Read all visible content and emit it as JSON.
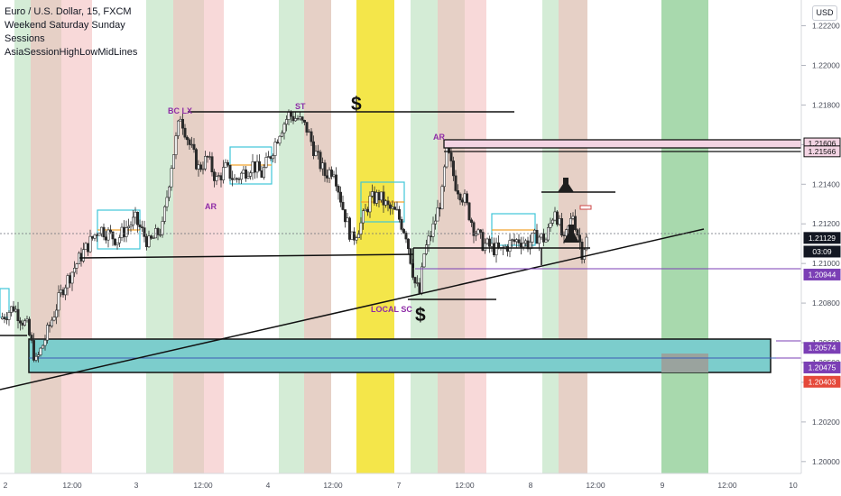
{
  "legend": {
    "symbol": "Euro / U.S. Dollar, 15, FXCM",
    "indicators": [
      "Weekend Saturday Sunday",
      "Sessions",
      "AsiaSessionHighLowMidLines"
    ]
  },
  "currency_button": "USD",
  "colors": {
    "background": "#ffffff",
    "candle": "#2b2b2b",
    "green_session": "#d4ecd6",
    "red_session": "#f8d9d9",
    "brown_session": "#e6d0c6",
    "yellow_highlight": "#f4e64a",
    "future_green": "#a8d9ad",
    "zone_fill": "#7ccdcc",
    "asia_box": "#3fc6d8",
    "asia_mid": "#f2a32e",
    "purple_line": "#7b3fb5",
    "label_purple": "#8e2ca6",
    "price_current": "#131722",
    "price_red": "#e5493a",
    "axis_text": "#4a4e5a"
  },
  "chart_data": {
    "type": "candlestick",
    "symbol": "EURUSD",
    "timeframe": "15",
    "ylim": [
      1.1994,
      1.2233
    ],
    "y_ticks": [
      "1.22200",
      "1.22000",
      "1.21800",
      "1.21600",
      "1.21400",
      "1.21200",
      "1.21000",
      "1.20800",
      "1.20600",
      "1.20500",
      "1.20400",
      "1.20200",
      "1.20000"
    ],
    "x_ticks": [
      "2",
      "12:00",
      "3",
      "12:00",
      "4",
      "12:00",
      "7",
      "12:00",
      "8",
      "12:00",
      "9",
      "12:00",
      "10"
    ],
    "price_trend": [
      [
        0,
        1.2072
      ],
      [
        3,
        1.2078
      ],
      [
        6,
        1.2068
      ],
      [
        8,
        1.205
      ],
      [
        10,
        1.2062
      ],
      [
        14,
        1.2088
      ],
      [
        18,
        1.2104
      ],
      [
        22,
        1.2118
      ],
      [
        24,
        1.2115
      ],
      [
        26,
        1.2112
      ],
      [
        28,
        1.2118
      ],
      [
        30,
        1.2122
      ],
      [
        33,
        1.211
      ],
      [
        36,
        1.2118
      ],
      [
        38,
        1.215
      ],
      [
        40,
        1.2175
      ],
      [
        42,
        1.216
      ],
      [
        44,
        1.2148
      ],
      [
        46,
        1.2153
      ],
      [
        48,
        1.2142
      ],
      [
        50,
        1.2148
      ],
      [
        52,
        1.2142
      ],
      [
        54,
        1.2146
      ],
      [
        56,
        1.215
      ],
      [
        58,
        1.2145
      ],
      [
        60,
        1.2155
      ],
      [
        62,
        1.2167
      ],
      [
        64,
        1.2175
      ],
      [
        66,
        1.2173
      ],
      [
        68,
        1.2168
      ],
      [
        70,
        1.2155
      ],
      [
        72,
        1.2145
      ],
      [
        74,
        1.2148
      ],
      [
        76,
        1.2128
      ],
      [
        78,
        1.2112
      ],
      [
        80,
        1.212
      ],
      [
        82,
        1.2132
      ],
      [
        84,
        1.2134
      ],
      [
        86,
        1.2128
      ],
      [
        88,
        1.2125
      ],
      [
        90,
        1.2115
      ],
      [
        92,
        1.209
      ],
      [
        93,
        1.2085
      ],
      [
        94,
        1.2105
      ],
      [
        96,
        1.2118
      ],
      [
        98,
        1.2135
      ],
      [
        99,
        1.2158
      ],
      [
        101,
        1.214
      ],
      [
        103,
        1.2132
      ],
      [
        105,
        1.2118
      ],
      [
        107,
        1.211
      ],
      [
        109,
        1.2108
      ],
      [
        111,
        1.2106
      ],
      [
        113,
        1.211
      ],
      [
        115,
        1.2112
      ],
      [
        117,
        1.211
      ],
      [
        119,
        1.2114
      ],
      [
        121,
        1.2112
      ],
      [
        123,
        1.2128
      ],
      [
        125,
        1.211
      ],
      [
        127,
        1.2125
      ],
      [
        129,
        1.2106
      ],
      [
        130,
        1.2112
      ]
    ],
    "price_labels": [
      {
        "text": "1.21606",
        "price": 1.21606,
        "style": "pink"
      },
      {
        "text": "1.21566",
        "price": 1.21566,
        "style": "pink"
      },
      {
        "text": "1.21129",
        "price": 1.21129,
        "style": "dark"
      },
      {
        "text": "03:09",
        "price": 1.2106,
        "style": "dark"
      },
      {
        "text": "1.20944",
        "price": 1.20944,
        "style": "purple"
      },
      {
        "text": "1.20574",
        "price": 1.20574,
        "style": "purple"
      },
      {
        "text": "1.20475",
        "price": 1.20475,
        "style": "purple"
      },
      {
        "text": "1.20403",
        "price": 1.20403,
        "style": "red"
      }
    ],
    "levels": [
      {
        "price": 1.21606,
        "color": "#7b3fb5"
      },
      {
        "price": 1.21566,
        "color": "#7b3fb5"
      },
      {
        "price": 1.20944,
        "color": "#7b3fb5"
      },
      {
        "price": 1.20574,
        "color": "#7b3fb5"
      },
      {
        "price": 1.20475,
        "color": "#7b3fb5"
      }
    ],
    "annotations": [
      "BC LX",
      "ST",
      "$",
      "AR",
      "AR",
      "LOCAL SC",
      "$"
    ]
  }
}
